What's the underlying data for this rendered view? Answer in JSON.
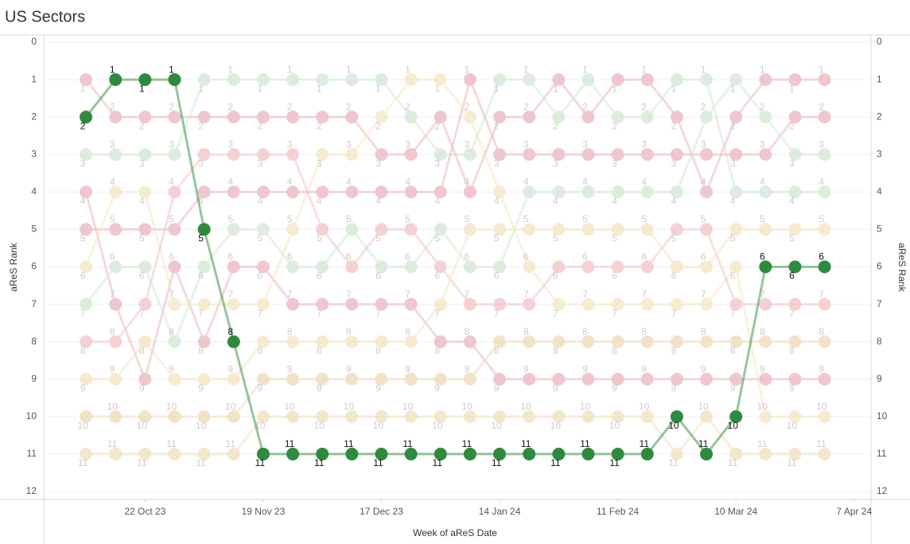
{
  "chart_data": {
    "type": "bump",
    "title": "US Sectors",
    "x_label": "Week of aReS Date",
    "y_label": "aReS Rank",
    "y2_label": "aReS Rank",
    "y_inverted": true,
    "grid": true,
    "xlim": [
      "2023-09-28",
      "2024-04-11"
    ],
    "xticks": [
      {
        "value": "2023-10-22",
        "label": "22 Oct 23"
      },
      {
        "value": "2023-11-19",
        "label": "19 Nov 23"
      },
      {
        "value": "2023-12-17",
        "label": "17 Dec 23"
      },
      {
        "value": "2024-01-14",
        "label": "14 Jan 24"
      },
      {
        "value": "2024-02-11",
        "label": "11 Feb 24"
      },
      {
        "value": "2024-03-10",
        "label": "10 Mar 24"
      },
      {
        "value": "2024-04-07",
        "label": "7 Apr 24"
      }
    ],
    "ylim": [
      0,
      12
    ],
    "yticks": [
      0,
      1,
      2,
      3,
      4,
      5,
      6,
      7,
      8,
      9,
      10,
      11,
      12
    ],
    "y2lim": [
      0,
      12
    ],
    "y2ticks": [
      0,
      1,
      2,
      3,
      4,
      5,
      6,
      7,
      8,
      9,
      10,
      11,
      12
    ],
    "highlight_series": 0,
    "x": [
      "2023-10-08",
      "2023-10-15",
      "2023-10-22",
      "2023-10-29",
      "2023-11-05",
      "2023-11-12",
      "2023-11-19",
      "2023-11-26",
      "2023-12-03",
      "2023-12-10",
      "2023-12-17",
      "2023-12-24",
      "2023-12-31",
      "2024-01-07",
      "2024-01-14",
      "2024-01-21",
      "2024-01-28",
      "2024-02-04",
      "2024-02-11",
      "2024-02-18",
      "2024-02-25",
      "2024-03-03",
      "2024-03-10",
      "2024-03-17",
      "2024-03-24",
      "2024-03-31"
    ],
    "series": [
      {
        "color": "#2e8b3e",
        "values": [
          2,
          1,
          1,
          1,
          5,
          8,
          11,
          11,
          11,
          11,
          11,
          11,
          11,
          11,
          11,
          11,
          11,
          11,
          11,
          11,
          10,
          11,
          10,
          6,
          6,
          6
        ]
      },
      {
        "color": "#e9b6bb",
        "values": [
          1,
          2,
          2,
          2,
          2,
          2,
          2,
          2,
          2,
          2,
          3,
          3,
          2,
          4,
          2,
          2,
          1,
          2,
          1,
          1,
          2,
          4,
          2,
          1,
          1,
          1
        ]
      },
      {
        "color": "#d2e7d2",
        "values": [
          3,
          3,
          3,
          3,
          1,
          1,
          1,
          1,
          1,
          1,
          1,
          2,
          3,
          3,
          1,
          1,
          2,
          1,
          2,
          2,
          1,
          1,
          4,
          4,
          4,
          4
        ]
      },
      {
        "color": "#e9b6bb",
        "values": [
          4,
          7,
          9,
          6,
          8,
          6,
          6,
          7,
          7,
          7,
          7,
          7,
          8,
          8,
          9,
          9,
          9,
          9,
          9,
          9,
          9,
          9,
          9,
          9,
          9,
          9
        ]
      },
      {
        "color": "#e9b6bb",
        "values": [
          5,
          5,
          5,
          5,
          4,
          4,
          4,
          4,
          4,
          4,
          4,
          4,
          4,
          1,
          3,
          3,
          3,
          3,
          3,
          3,
          3,
          3,
          3,
          3,
          2,
          2
        ]
      },
      {
        "color": "#f4e6c2",
        "values": [
          6,
          4,
          4,
          7,
          7,
          7,
          7,
          5,
          3,
          3,
          2,
          1,
          1,
          2,
          4,
          6,
          7,
          7,
          7,
          7,
          7,
          7,
          6,
          10,
          10,
          10
        ]
      },
      {
        "color": "#d2e7d2",
        "values": [
          7,
          6,
          6,
          8,
          6,
          5,
          5,
          6,
          6,
          5,
          6,
          6,
          5,
          6,
          6,
          4,
          4,
          4,
          4,
          4,
          4,
          2,
          1,
          2,
          3,
          3
        ]
      },
      {
        "color": "#f1c3c6",
        "values": [
          8,
          8,
          7,
          4,
          3,
          3,
          3,
          3,
          5,
          6,
          5,
          5,
          6,
          7,
          7,
          7,
          6,
          6,
          6,
          6,
          5,
          5,
          7,
          7,
          7,
          7
        ]
      },
      {
        "color": "#f3e4c0",
        "values": [
          9,
          9,
          8,
          9,
          9,
          9,
          8,
          8,
          8,
          8,
          8,
          8,
          7,
          5,
          5,
          5,
          5,
          5,
          5,
          5,
          6,
          6,
          5,
          5,
          5,
          5
        ]
      },
      {
        "color": "#eedab6",
        "values": [
          10,
          10,
          10,
          10,
          10,
          10,
          9,
          9,
          9,
          9,
          9,
          9,
          9,
          9,
          8,
          8,
          8,
          8,
          8,
          8,
          8,
          8,
          8,
          8,
          8,
          8
        ]
      },
      {
        "color": "#f0dfbd",
        "values": [
          11,
          11,
          11,
          11,
          11,
          11,
          10,
          10,
          10,
          10,
          10,
          10,
          10,
          10,
          10,
          10,
          10,
          10,
          10,
          10,
          11,
          10,
          11,
          11,
          11,
          11
        ]
      }
    ]
  }
}
